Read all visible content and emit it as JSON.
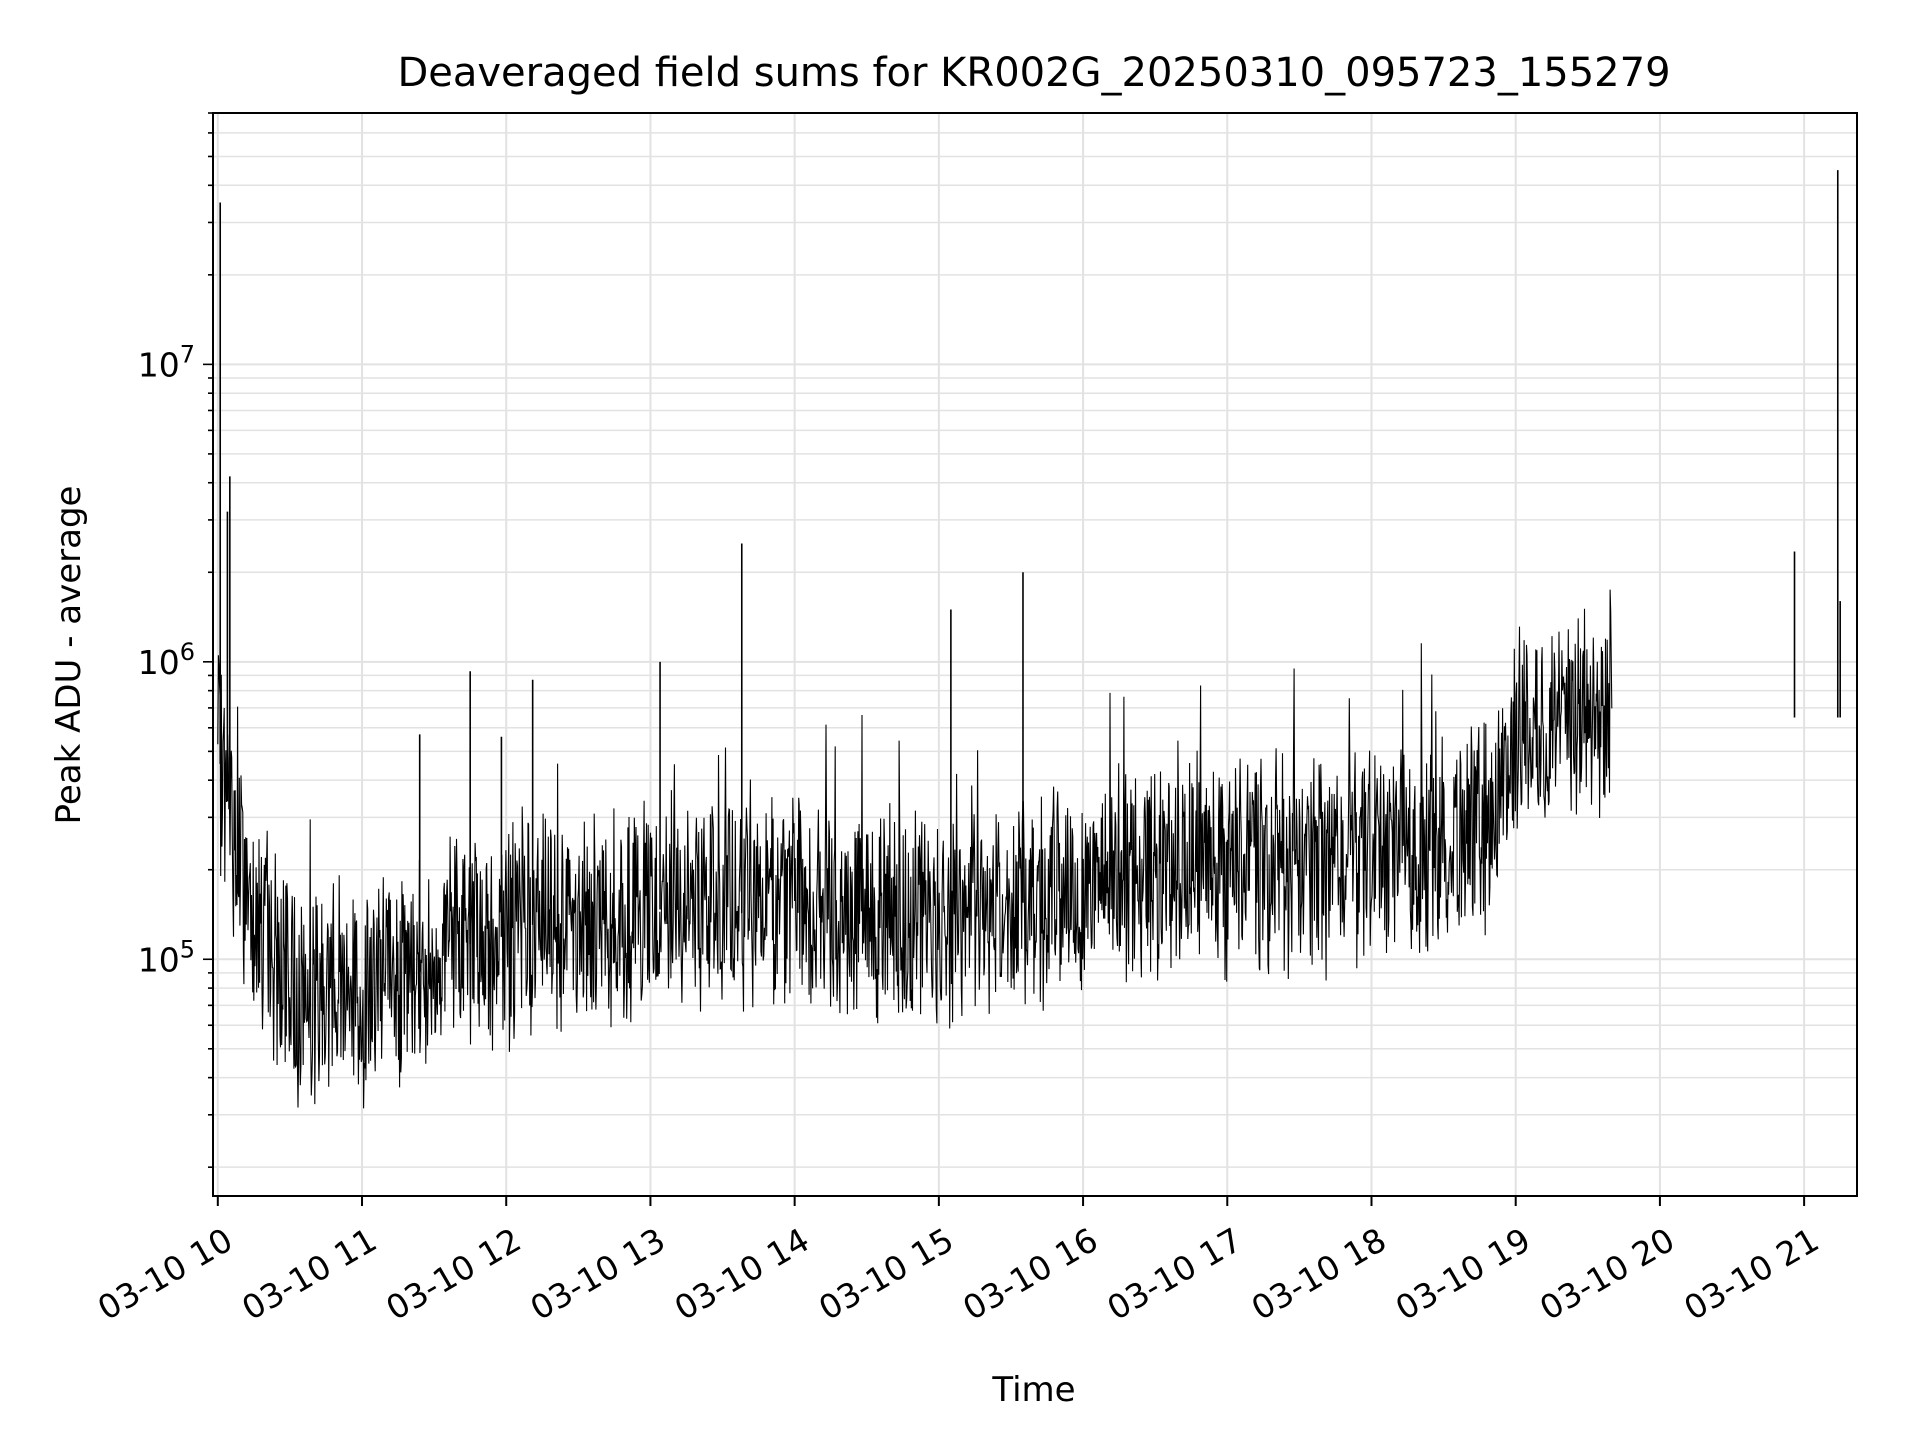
{
  "chart_data": {
    "type": "line",
    "title": "Deaveraged field sums for KR002G_20250310_095723_155279",
    "xlabel": "Time",
    "ylabel": "Peak ADU - average",
    "x_ticks": [
      "03-10 10",
      "03-10 11",
      "03-10 12",
      "03-10 13",
      "03-10 14",
      "03-10 15",
      "03-10 16",
      "03-10 17",
      "03-10 18",
      "03-10 19",
      "03-10 20",
      "03-10 21"
    ],
    "y_ticks": [
      {
        "value": 100000,
        "base": "10",
        "exp": "5"
      },
      {
        "value": 1000000,
        "base": "10",
        "exp": "6"
      },
      {
        "value": 10000000,
        "base": "10",
        "exp": "7"
      }
    ],
    "xlim": [
      "2025-03-10 09:58",
      "2025-03-10 21:22"
    ],
    "ylim": [
      16000,
      70000000
    ],
    "yscale": "log",
    "grid": true,
    "line_color": "#000000",
    "series": [
      {
        "x_start": "2025-03-10 10:00",
        "x_step_minutes": 10,
        "values": [
          500000,
          190000,
          120000,
          80000,
          75000,
          90000,
          70000,
          95000,
          85000,
          100000,
          110000,
          115000,
          120000,
          130000,
          135000,
          140000,
          140000,
          125000,
          145000,
          150000,
          150000,
          155000,
          140000,
          160000,
          160000,
          150000,
          145000,
          145000,
          145000,
          140000,
          135000,
          140000,
          145000,
          150000,
          160000,
          170000,
          180000,
          195000,
          200000,
          200000,
          210000,
          210000,
          205000,
          210000,
          205000,
          200000,
          210000,
          220000,
          220000,
          230000,
          220000,
          250000,
          270000,
          280000,
          600000,
          620000,
          560000,
          700000,
          650000
        ]
      }
    ],
    "spikes": [
      {
        "x": "2025-03-10 10:01",
        "y": 35000000
      },
      {
        "x": "2025-03-10 10:05",
        "y": 4200000
      },
      {
        "x": "2025-03-10 10:04",
        "y": 3200000
      },
      {
        "x": "2025-03-10 11:24",
        "y": 570000
      },
      {
        "x": "2025-03-10 11:45",
        "y": 930000
      },
      {
        "x": "2025-03-10 11:58",
        "y": 560000
      },
      {
        "x": "2025-03-10 12:11",
        "y": 870000
      },
      {
        "x": "2025-03-10 13:04",
        "y": 1000000
      },
      {
        "x": "2025-03-10 13:38",
        "y": 2500000
      },
      {
        "x": "2025-03-10 15:05",
        "y": 1500000
      },
      {
        "x": "2025-03-10 15:35",
        "y": 2000000
      },
      {
        "x": "2025-03-10 20:56",
        "y": 2350000
      },
      {
        "x": "2025-03-10 21:14",
        "y": 45000000
      },
      {
        "x": "2025-03-10 21:15",
        "y": 1600000
      }
    ]
  }
}
